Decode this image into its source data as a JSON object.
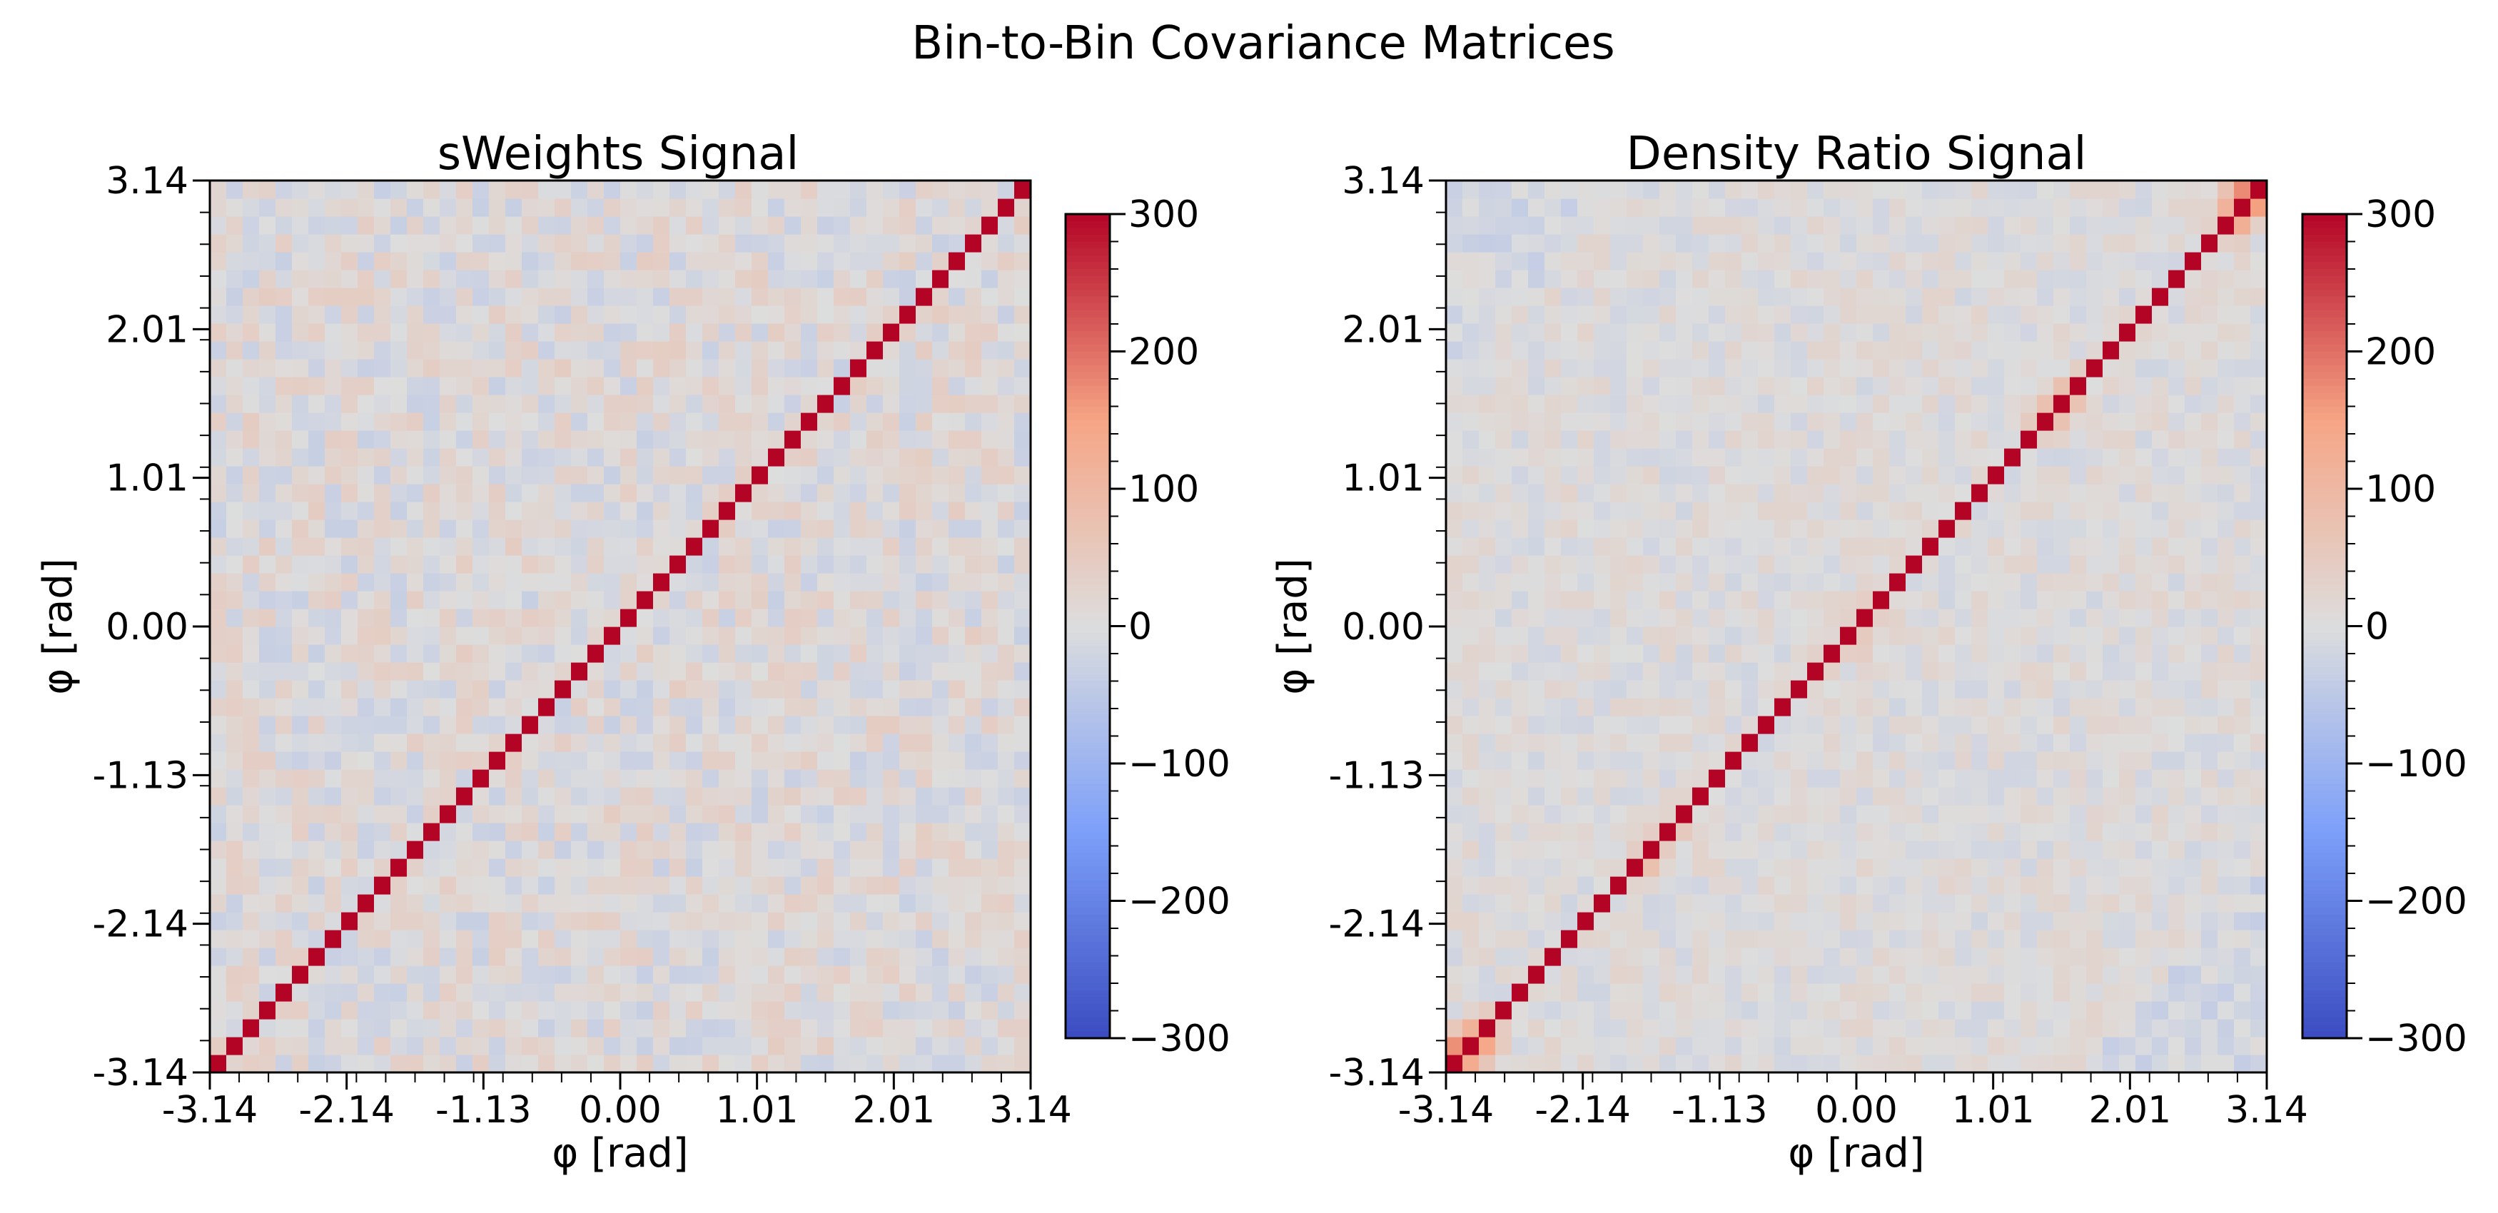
{
  "figure": {
    "title": "Bin-to-Bin Covariance Matrices"
  },
  "chart_data": [
    {
      "type": "heatmap",
      "title": "sWeights Signal",
      "xlabel": "φ [rad]",
      "ylabel": "φ [rad]",
      "xlim": [
        -3.14,
        3.14
      ],
      "ylim": [
        -3.14,
        3.14
      ],
      "x_tick_labels": [
        "-3.14",
        "-2.14",
        "-1.13",
        "0.00",
        "1.01",
        "2.01",
        "3.14"
      ],
      "y_tick_labels": [
        "-3.14",
        "-2.14",
        "-1.13",
        "0.00",
        "1.01",
        "2.01",
        "3.14"
      ],
      "n_bins": 50,
      "colormap": "coolwarm",
      "color_range": [
        -300,
        300
      ],
      "colorbar_ticks": [
        300,
        200,
        100,
        0,
        -100,
        -200,
        -300
      ],
      "colorbar_tick_labels": [
        "300",
        "200",
        "100",
        "0",
        "−100",
        "−200",
        "−300"
      ],
      "diagonal_value": 300,
      "off_diagonal_typical_range": [
        -40,
        40
      ],
      "off_diagonal_mean": 5,
      "enhanced_diagonal_blocks": []
    },
    {
      "type": "heatmap",
      "title": "Density Ratio Signal",
      "xlabel": "φ [rad]",
      "ylabel": "φ [rad]",
      "xlim": [
        -3.14,
        3.14
      ],
      "ylim": [
        -3.14,
        3.14
      ],
      "x_tick_labels": [
        "-3.14",
        "-2.14",
        "-1.13",
        "0.00",
        "1.01",
        "2.01",
        "3.14"
      ],
      "y_tick_labels": [
        "-3.14",
        "-2.14",
        "-1.13",
        "0.00",
        "1.01",
        "2.01",
        "3.14"
      ],
      "n_bins": 50,
      "colormap": "coolwarm",
      "color_range": [
        -300,
        300
      ],
      "colorbar_ticks": [
        300,
        200,
        100,
        0,
        -100,
        -200,
        -300
      ],
      "colorbar_tick_labels": [
        "300",
        "200",
        "100",
        "0",
        "−100",
        "−200",
        "−300"
      ],
      "diagonal_value": 300,
      "off_diagonal_typical_range": [
        -25,
        25
      ],
      "off_diagonal_mean": 3,
      "enhanced_diagonal_blocks": [
        {
          "phi_center": -3.0,
          "half_width_rad": 0.35,
          "peak": 280
        },
        {
          "phi_center": -1.55,
          "half_width_rad": 0.3,
          "peak": 130
        },
        {
          "phi_center": 0.0,
          "half_width_rad": 0.35,
          "peak": 100
        },
        {
          "phi_center": 1.55,
          "half_width_rad": 0.3,
          "peak": 140
        },
        {
          "phi_center": 3.0,
          "half_width_rad": 0.35,
          "peak": 280
        }
      ]
    }
  ]
}
